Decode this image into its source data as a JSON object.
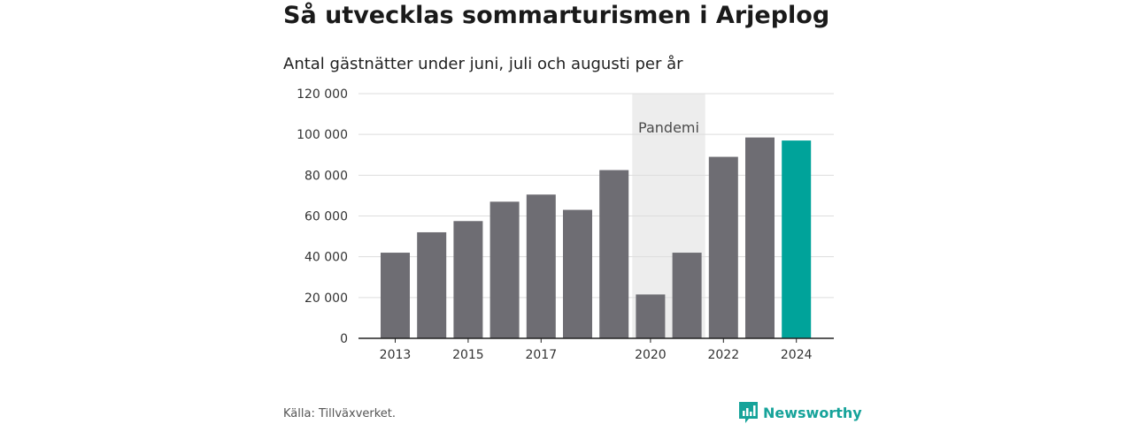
{
  "title": "Så utvecklas sommarturismen i Arjeplog",
  "subtitle": "Antal gästnätter under juni, juli och augusti per år",
  "source": "Källa: Tillväxverket.",
  "brand": {
    "name": "Newsworthy",
    "icon": "bar-chart-speech-bubble-icon"
  },
  "colors": {
    "bar": "#6e6d73",
    "highlight": "#00a39a",
    "band": "#ededed",
    "grid": "#dddddd",
    "brand": "#16a39a"
  },
  "chart_data": {
    "type": "bar",
    "categories": [
      "2013",
      "2014",
      "2015",
      "2016",
      "2017",
      "2018",
      "2019",
      "2020",
      "2021",
      "2022",
      "2023",
      "2024"
    ],
    "values": [
      42000,
      52000,
      57500,
      67000,
      70500,
      63000,
      82500,
      21500,
      42000,
      89000,
      98500,
      97000
    ],
    "highlight_category": "2024",
    "xtick_labels": [
      "2013",
      "2015",
      "2017",
      "2020",
      "2022",
      "2024"
    ],
    "ylim": [
      0,
      120000
    ],
    "yticks": [
      0,
      20000,
      40000,
      60000,
      80000,
      100000,
      120000
    ],
    "ytick_labels": [
      "0",
      "20 000",
      "40 000",
      "60 000",
      "80 000",
      "100 000",
      "120 000"
    ],
    "annotation": {
      "label": "Pandemi",
      "from": "2020",
      "to": "2021"
    },
    "grid": true,
    "legend": "none"
  }
}
